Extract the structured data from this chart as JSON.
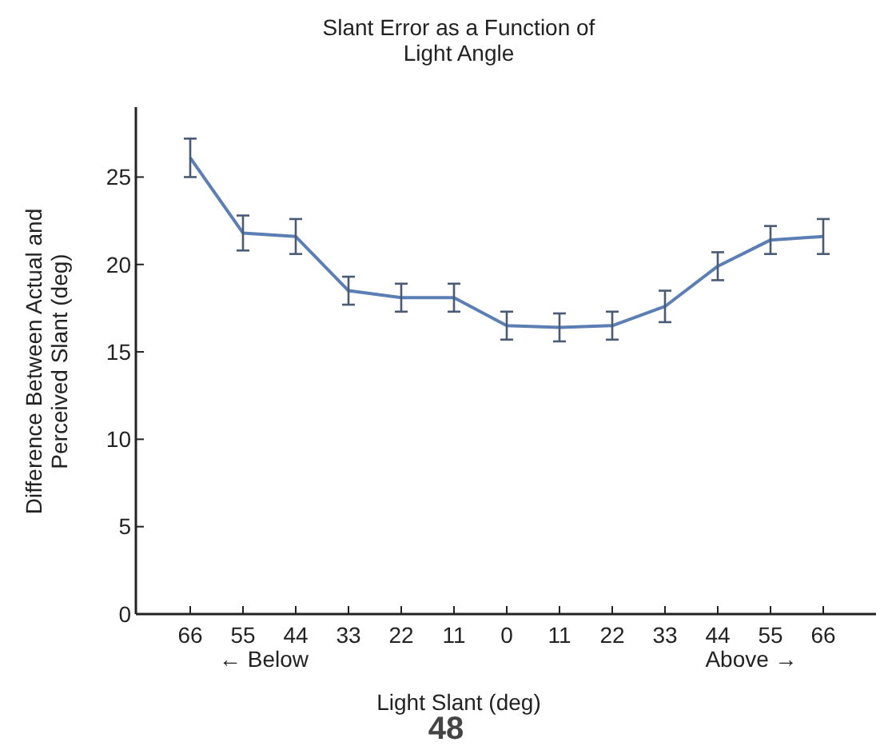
{
  "chart_data": {
    "type": "line",
    "title": "Slant Error as a Function of\nLight Angle",
    "xlabel": "Light Slant (deg)",
    "ylabel": "Difference Between Actual and\nPerceived Slant (deg)",
    "categories": [
      "66",
      "55",
      "44",
      "33",
      "22",
      "11",
      "0",
      "11",
      "22",
      "33",
      "44",
      "55",
      "66"
    ],
    "series": [
      {
        "color": "#5b7fb5",
        "values": [
          26.1,
          21.8,
          21.6,
          18.5,
          18.1,
          18.1,
          16.5,
          16.4,
          16.5,
          17.6,
          19.9,
          21.4,
          21.6
        ],
        "errors": [
          1.1,
          1.0,
          1.0,
          0.8,
          0.8,
          0.8,
          0.8,
          0.8,
          0.8,
          0.9,
          0.8,
          0.8,
          1.0
        ]
      }
    ],
    "ylim": [
      0,
      29
    ],
    "yticks": [
      0,
      5,
      10,
      15,
      20,
      25
    ],
    "grid": false,
    "marker": "none",
    "line_style": "solid",
    "annotations": [
      "← Below",
      "Above →",
      "48"
    ]
  }
}
